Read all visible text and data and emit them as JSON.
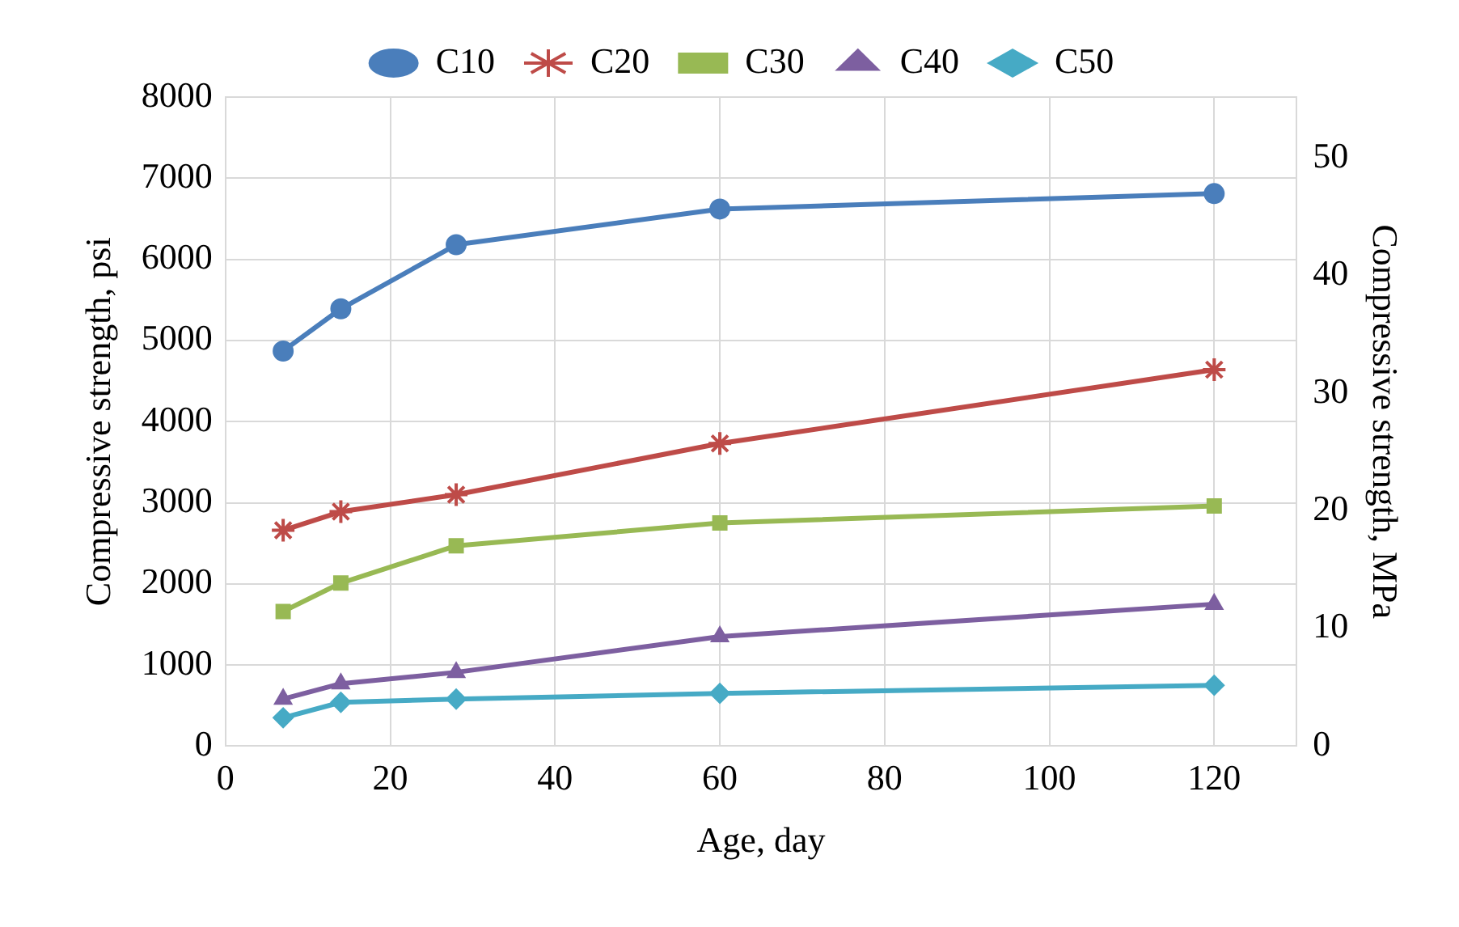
{
  "chart_data": {
    "type": "line",
    "xlabel": "Age, day",
    "ylabel": "Compressive strength, psi",
    "y2label": "Compressive strength, MPa",
    "x": [
      7,
      14,
      28,
      60,
      120
    ],
    "series": [
      {
        "name": "C10",
        "color": "#4a7ebb",
        "marker": "circle",
        "values": [
          4870,
          5390,
          6180,
          6620,
          6810
        ]
      },
      {
        "name": "C20",
        "color": "#be4b48",
        "marker": "cross",
        "values": [
          2660,
          2890,
          3100,
          3730,
          4640
        ]
      },
      {
        "name": "C30",
        "color": "#98b954",
        "marker": "square",
        "values": [
          1660,
          2010,
          2470,
          2750,
          2960
        ]
      },
      {
        "name": "C40",
        "color": "#7d5fa0",
        "marker": "triangle",
        "values": [
          580,
          770,
          910,
          1350,
          1750
        ]
      },
      {
        "name": "C50",
        "color": "#46aac5",
        "marker": "diamond",
        "values": [
          350,
          540,
          580,
          650,
          750
        ]
      }
    ],
    "xlim": [
      0,
      130
    ],
    "xticks": [
      0,
      20,
      40,
      60,
      80,
      100,
      120
    ],
    "ylim": [
      0,
      8000
    ],
    "yticks": [
      0,
      1000,
      2000,
      3000,
      4000,
      5000,
      6000,
      7000,
      8000
    ],
    "y2lim": [
      0,
      55.16
    ],
    "y2ticks": [
      0,
      10,
      20,
      30,
      40,
      50
    ],
    "grid": true,
    "legend": "top",
    "line_style": "solid"
  }
}
